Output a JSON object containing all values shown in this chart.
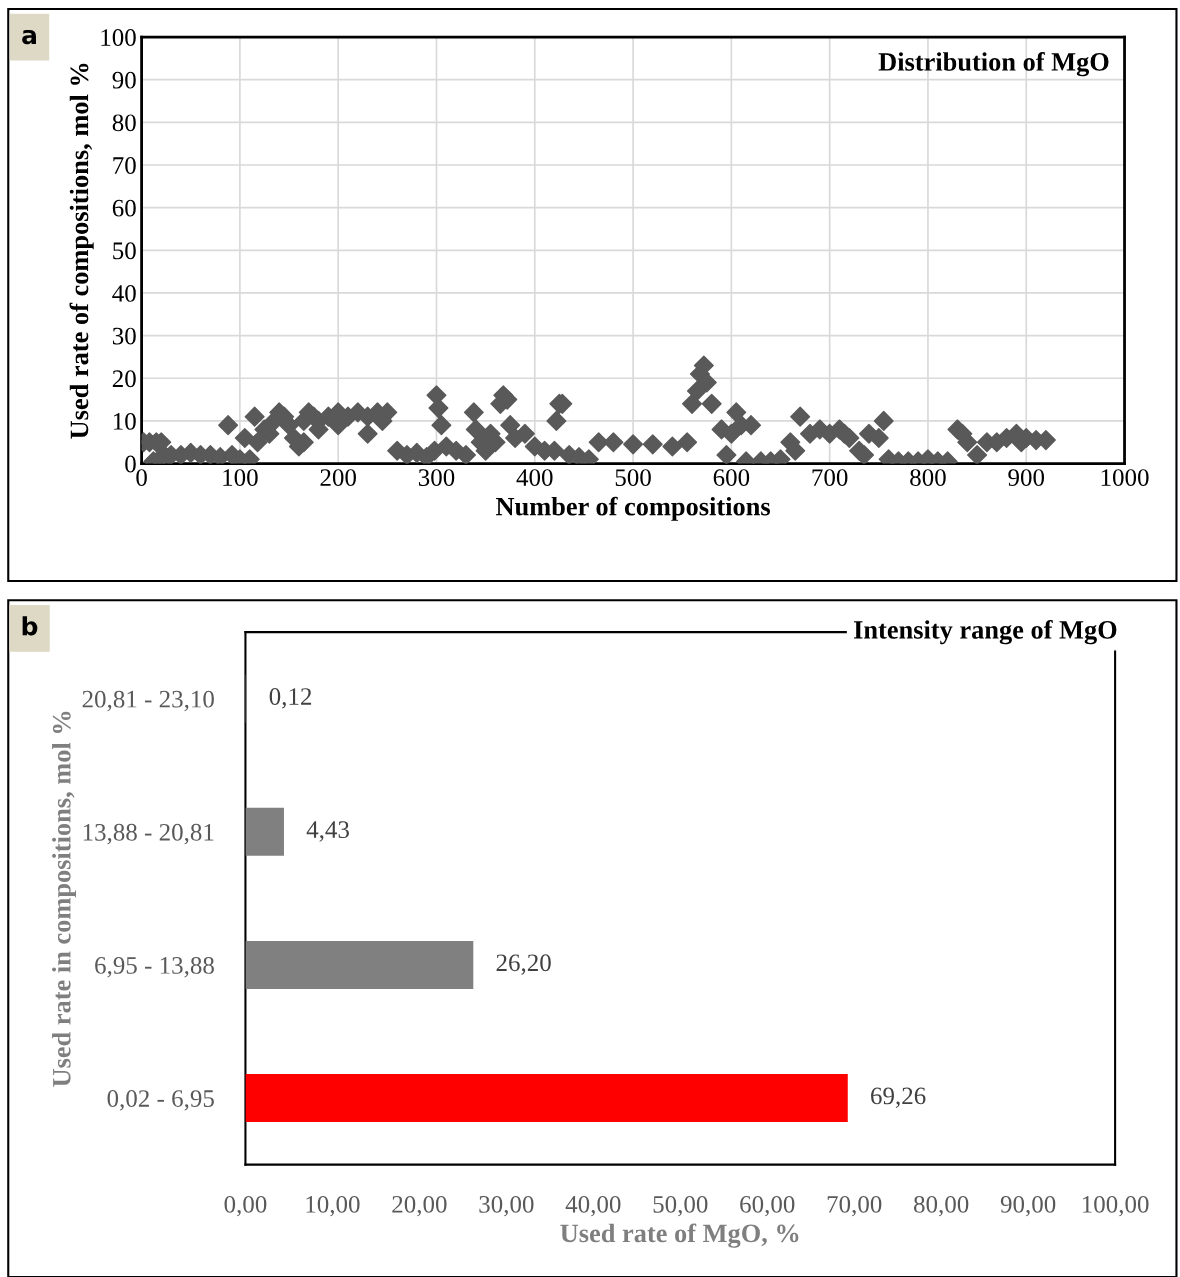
{
  "chart_data": [
    {
      "type": "scatter",
      "title": "Distribution of MgO",
      "xlabel": "Number of compositions",
      "ylabel": "Used rate of compositions, mol %",
      "annotations": [
        "a"
      ],
      "series": [
        {
          "color": "#595959",
          "x": [
            2,
            8,
            15,
            20,
            12,
            18,
            25,
            30,
            40,
            50,
            60,
            70,
            80,
            88,
            92,
            100,
            105,
            110,
            115,
            118,
            125,
            130,
            135,
            140,
            145,
            150,
            155,
            160,
            165,
            170,
            175,
            180,
            190,
            200,
            210,
            220,
            230,
            240,
            245,
            250,
            165,
            180,
            200,
            230,
            260,
            270,
            280,
            290,
            298,
            300,
            302,
            305,
            310,
            320,
            330,
            338,
            340,
            345,
            350,
            355,
            360,
            365,
            368,
            372,
            375,
            380,
            390,
            400,
            410,
            420,
            422,
            425,
            428,
            435,
            445,
            455,
            465,
            480,
            500,
            520,
            540,
            555,
            560,
            565,
            568,
            572,
            575,
            580,
            590,
            595,
            600,
            605,
            610,
            615,
            620,
            630,
            640,
            650,
            660,
            665,
            670,
            680,
            690,
            700,
            710,
            715,
            720,
            730,
            735,
            740,
            750,
            755,
            760,
            770,
            780,
            790,
            800,
            810,
            820,
            830,
            835,
            840,
            850,
            860,
            870,
            880,
            890,
            895,
            900,
            910,
            920
          ],
          "values": [
            5,
            5,
            5,
            5,
            0.5,
            1,
            1.5,
            2,
            2,
            2.5,
            2,
            2,
            1.5,
            9,
            2,
            1,
            6,
            1,
            11,
            5,
            8,
            7,
            10,
            12,
            11,
            9,
            6,
            4,
            10,
            12,
            11,
            10,
            11,
            12,
            11,
            12,
            11,
            12,
            10,
            12,
            5,
            8,
            9,
            7,
            3,
            2,
            2.5,
            1.5,
            3,
            16,
            13,
            9,
            4,
            3,
            2,
            12,
            8,
            5,
            3,
            7,
            5,
            14,
            16,
            15,
            9,
            6,
            7,
            4,
            3,
            3,
            10,
            14,
            14,
            2,
            1.5,
            1,
            5,
            5,
            4.5,
            4.5,
            4,
            5,
            14,
            17,
            21,
            23,
            19,
            14,
            8,
            2,
            7,
            12,
            9,
            0.5,
            9,
            0.5,
            0.5,
            1,
            5,
            3,
            11,
            7,
            8,
            7,
            8,
            7,
            6,
            3,
            2,
            7,
            6,
            10,
            1,
            0.5,
            0.5,
            0.5,
            1,
            0.5,
            0.5,
            8,
            7,
            5,
            2,
            5,
            5,
            6,
            7,
            5,
            6,
            5.5,
            5.5
          ]
        }
      ],
      "marker": "diamond",
      "grid": true,
      "xlim": [
        0,
        1000
      ],
      "ylim": [
        0,
        100
      ],
      "xticks": [
        0,
        100,
        200,
        300,
        400,
        500,
        600,
        700,
        800,
        900,
        1000
      ],
      "yticks": [
        0,
        10,
        20,
        30,
        40,
        50,
        60,
        70,
        80,
        90,
        100
      ]
    },
    {
      "type": "bar",
      "orientation": "horizontal",
      "title": "Intensity range of MgO",
      "xlabel": "Used rate of MgO, %",
      "ylabel": "Used rate in compositions, mol %",
      "annotations": [
        "b"
      ],
      "categories": [
        "20,81 - 23,10",
        "13,88 - 20,81",
        "6,95 - 13,88",
        "0,02 - 6,95"
      ],
      "values": [
        0.12,
        4.43,
        26.2,
        69.26
      ],
      "colors": [
        "#808080",
        "#808080",
        "#808080",
        "#ff0000"
      ],
      "value_labels": [
        "0,12",
        "4,43",
        "26,20",
        "69,26"
      ],
      "xlim": [
        0,
        100
      ],
      "xticks": [
        {
          "value": 0,
          "label": "0,00"
        },
        {
          "value": 10,
          "label": "10,00"
        },
        {
          "value": 20,
          "label": "20,00"
        },
        {
          "value": 30,
          "label": "30,00"
        },
        {
          "value": 40,
          "label": "40,00"
        },
        {
          "value": 50,
          "label": "50,00"
        },
        {
          "value": 60,
          "label": "60,00"
        },
        {
          "value": 70,
          "label": "70,00"
        },
        {
          "value": 80,
          "label": "80,00"
        },
        {
          "value": 90,
          "label": "90,00"
        },
        {
          "value": 100,
          "label": "100,00"
        }
      ],
      "grid": false
    }
  ]
}
